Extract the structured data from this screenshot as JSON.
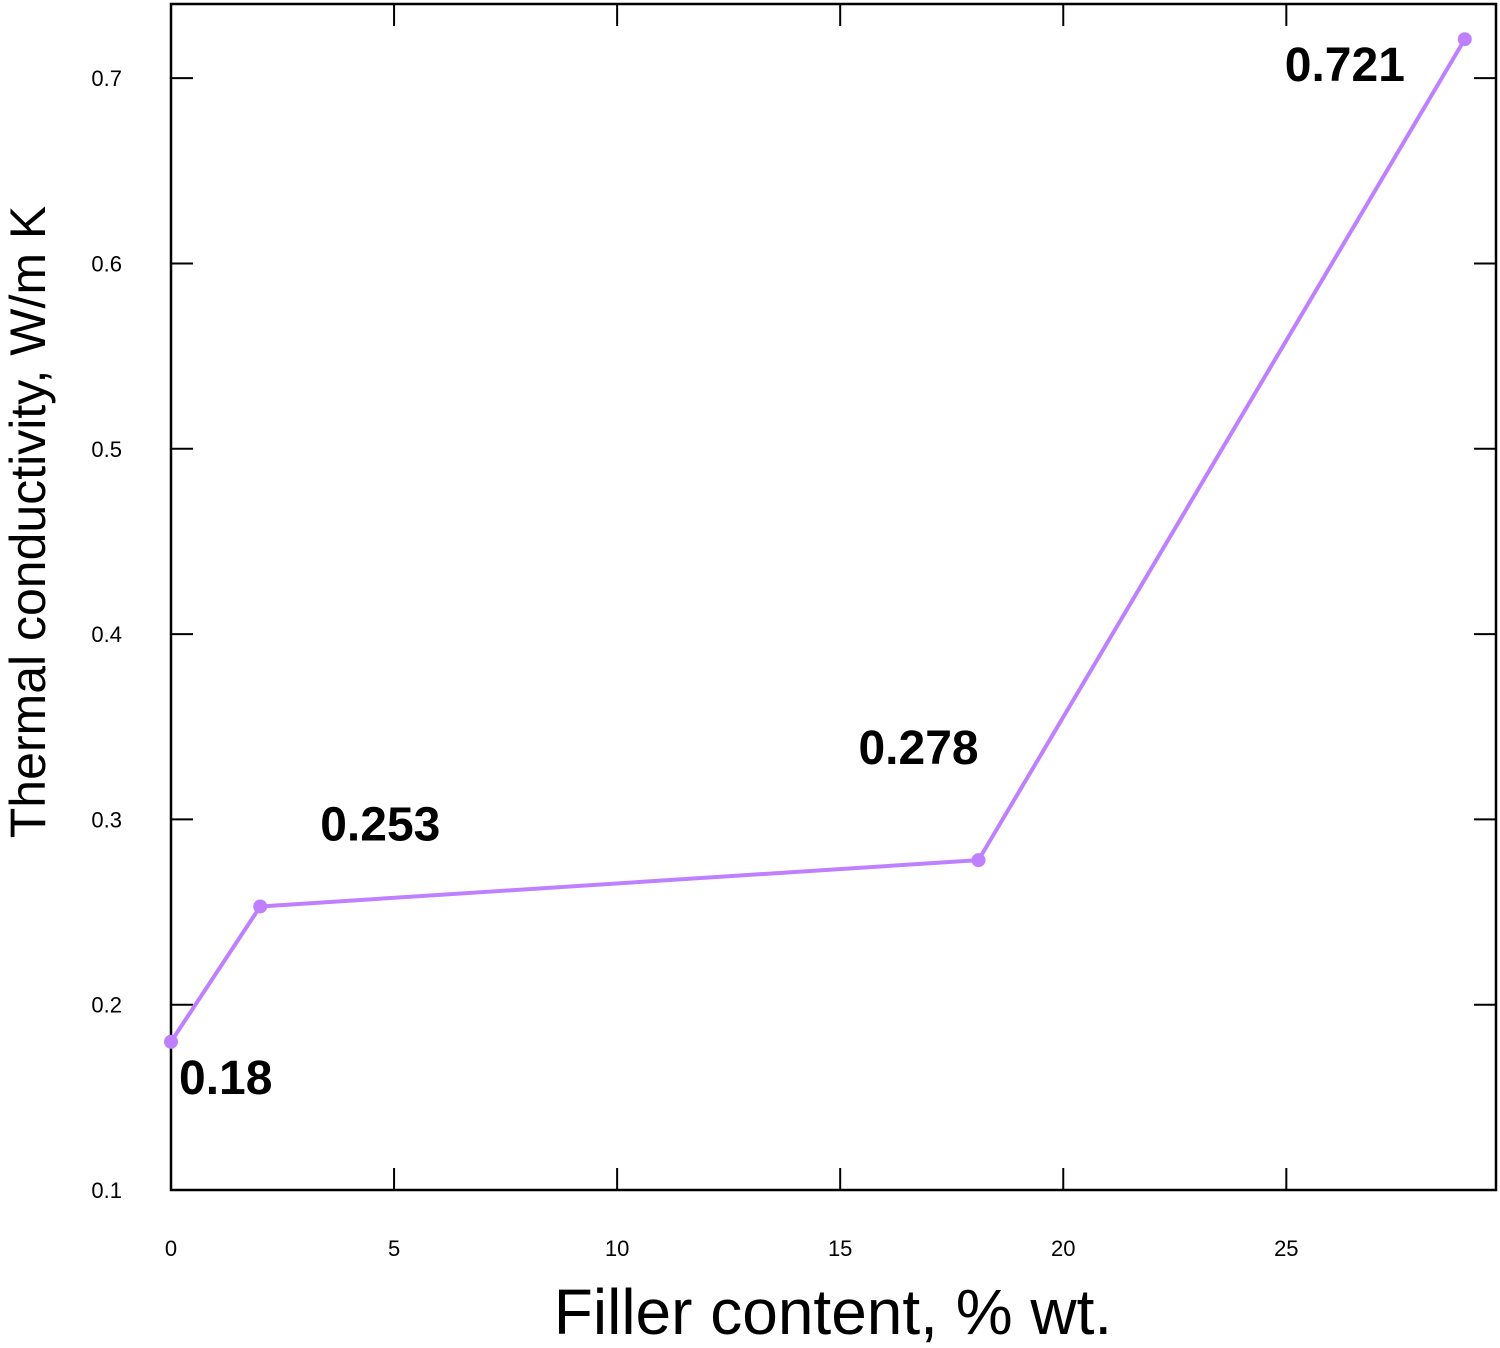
{
  "chart_data": {
    "type": "line",
    "title": "",
    "xlabel": "Filler content, % wt.",
    "ylabel": "Thermal conductivity, W/m K",
    "xlim": [
      0,
      29.7
    ],
    "ylim": [
      0.1,
      0.74
    ],
    "x_ticks": [
      0,
      5,
      10,
      15,
      20,
      25
    ],
    "y_ticks": [
      0.1,
      0.2,
      0.3,
      0.4,
      0.5,
      0.6,
      0.7
    ],
    "x_tick_labels": [
      "0",
      "5",
      "10",
      "15",
      "20",
      "25"
    ],
    "y_tick_labels": [
      "0.1",
      "0.2",
      "0.3",
      "0.4",
      "0.5",
      "0.6",
      "0.7"
    ],
    "grid": false,
    "legend": "none",
    "series": [
      {
        "color": "#bf80ff",
        "x": [
          0,
          2,
          18.1,
          29
        ],
        "y": [
          0.18,
          0.253,
          0.278,
          0.721
        ]
      }
    ],
    "annotations": [
      {
        "text": "0.18",
        "x": 0,
        "y": 0.18
      },
      {
        "text": "0.253",
        "x": 2,
        "y": 0.253
      },
      {
        "text": "0.278",
        "x": 18.1,
        "y": 0.278
      },
      {
        "text": "0.721",
        "x": 29,
        "y": 0.721
      }
    ]
  }
}
